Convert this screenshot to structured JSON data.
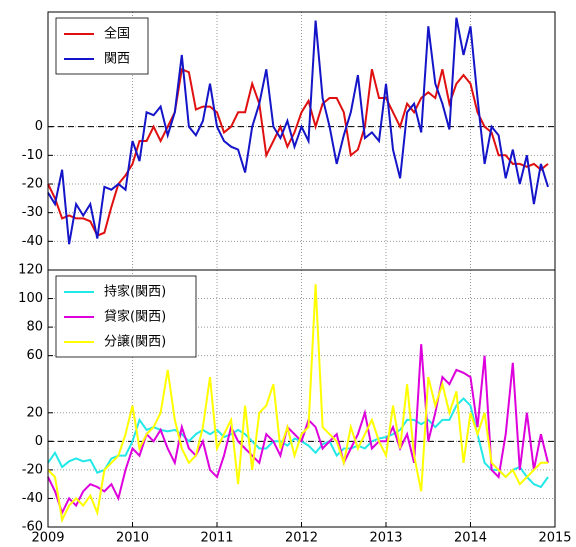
{
  "chart_data": [
    {
      "type": "line",
      "x": [
        2009,
        2009.083,
        2009.167,
        2009.25,
        2009.333,
        2009.417,
        2009.5,
        2009.583,
        2009.667,
        2009.75,
        2009.833,
        2009.917,
        2010,
        2010.083,
        2010.167,
        2010.25,
        2010.333,
        2010.417,
        2010.5,
        2010.583,
        2010.667,
        2010.75,
        2010.833,
        2010.917,
        2011,
        2011.083,
        2011.167,
        2011.25,
        2011.333,
        2011.417,
        2011.5,
        2011.583,
        2011.667,
        2011.75,
        2011.833,
        2011.917,
        2012,
        2012.083,
        2012.167,
        2012.25,
        2012.333,
        2012.417,
        2012.5,
        2012.583,
        2012.667,
        2012.75,
        2012.833,
        2012.917,
        2013,
        2013.083,
        2013.167,
        2013.25,
        2013.333,
        2013.417,
        2013.5,
        2013.583,
        2013.667,
        2013.75,
        2013.833,
        2013.917,
        2014,
        2014.083,
        2014.167,
        2014.25,
        2014.333,
        2014.417,
        2014.5,
        2014.583,
        2014.667,
        2014.75,
        2014.833,
        2014.917
      ],
      "xlim": [
        2009,
        2015
      ],
      "ylim": [
        -50,
        40
      ],
      "yticks": [
        -40,
        -30,
        -20,
        -10,
        0
      ],
      "grid": true,
      "legend": "upper left",
      "series": [
        {
          "name": "全国",
          "color": "#e01010",
          "values": [
            -20,
            -25,
            -32,
            -31,
            -32,
            -32,
            -33,
            -38,
            -37,
            -28,
            -20,
            -17,
            -13,
            -5,
            -5,
            0,
            -5,
            0,
            5,
            20,
            19,
            6,
            7,
            7,
            5,
            -2,
            0,
            5,
            5,
            15,
            8,
            -10,
            -5,
            0,
            -7,
            -2,
            5,
            9,
            0,
            8,
            10,
            10,
            5,
            -10,
            -8,
            0,
            20,
            10,
            10,
            5,
            0,
            8,
            5,
            10,
            12,
            10,
            20,
            8,
            15,
            18,
            15,
            5,
            0,
            -2,
            -10,
            -10,
            -13,
            -13,
            -14,
            -13,
            -15,
            -13
          ]
        },
        {
          "name": "関西",
          "color": "#1414c8",
          "values": [
            -23,
            -27,
            -15,
            -41,
            -27,
            -31,
            -27,
            -39,
            -21,
            -22,
            -20,
            -22,
            -5,
            -12,
            5,
            4,
            7,
            -3,
            5,
            25,
            0,
            -3,
            2,
            15,
            0,
            -5,
            -7,
            -8,
            -16,
            0,
            8,
            20,
            0,
            -4,
            2,
            -7,
            0,
            -5,
            37,
            10,
            0,
            -13,
            -3,
            5,
            18,
            -4,
            -2,
            -5,
            15,
            -8,
            -18,
            5,
            8,
            -2,
            35,
            15,
            8,
            -1,
            38,
            25,
            35,
            10,
            -13,
            0,
            -3,
            -18,
            -8,
            -20,
            -10,
            -27,
            -13,
            -21
          ]
        }
      ]
    },
    {
      "type": "line",
      "x": [
        2009,
        2009.083,
        2009.167,
        2009.25,
        2009.333,
        2009.417,
        2009.5,
        2009.583,
        2009.667,
        2009.75,
        2009.833,
        2009.917,
        2010,
        2010.083,
        2010.167,
        2010.25,
        2010.333,
        2010.417,
        2010.5,
        2010.583,
        2010.667,
        2010.75,
        2010.833,
        2010.917,
        2011,
        2011.083,
        2011.167,
        2011.25,
        2011.333,
        2011.417,
        2011.5,
        2011.583,
        2011.667,
        2011.75,
        2011.833,
        2011.917,
        2012,
        2012.083,
        2012.167,
        2012.25,
        2012.333,
        2012.417,
        2012.5,
        2012.583,
        2012.667,
        2012.75,
        2012.833,
        2012.917,
        2013,
        2013.083,
        2013.167,
        2013.25,
        2013.333,
        2013.417,
        2013.5,
        2013.583,
        2013.667,
        2013.75,
        2013.833,
        2013.917,
        2014,
        2014.083,
        2014.167,
        2014.25,
        2014.333,
        2014.417,
        2014.5,
        2014.583,
        2014.667,
        2014.75,
        2014.833,
        2014.917
      ],
      "xlim": [
        2009,
        2015
      ],
      "xticks": [
        2009,
        2010,
        2011,
        2012,
        2013,
        2014,
        2015
      ],
      "ylim": [
        -60,
        120
      ],
      "yticks": [
        -60,
        -40,
        -20,
        0,
        20,
        60,
        80,
        100,
        120
      ],
      "grid": true,
      "legend": "upper left",
      "series": [
        {
          "name": "持家(関西)",
          "color": "#22e8e8",
          "values": [
            -15,
            -8,
            -18,
            -14,
            -12,
            -14,
            -13,
            -22,
            -20,
            -12,
            -10,
            -10,
            0,
            15,
            8,
            10,
            8,
            7,
            8,
            5,
            0,
            5,
            8,
            5,
            8,
            3,
            5,
            8,
            5,
            0,
            -5,
            -5,
            0,
            0,
            -3,
            2,
            0,
            -3,
            -8,
            -2,
            0,
            -10,
            -5,
            -5,
            -3,
            -5,
            0,
            2,
            3,
            5,
            8,
            15,
            15,
            12,
            15,
            10,
            15,
            15,
            25,
            30,
            25,
            5,
            -15,
            -20,
            -20,
            -25,
            -20,
            -18,
            -25,
            -30,
            -32,
            -25
          ]
        },
        {
          "name": "貸家(関西)",
          "color": "#dd00dd",
          "values": [
            -25,
            -35,
            -50,
            -40,
            -45,
            -35,
            -30,
            -32,
            -35,
            -30,
            -40,
            -20,
            -5,
            -10,
            5,
            0,
            8,
            -5,
            -15,
            10,
            -5,
            -10,
            0,
            -20,
            -25,
            -10,
            10,
            0,
            -5,
            -10,
            -15,
            5,
            0,
            -10,
            10,
            5,
            0,
            15,
            10,
            -5,
            0,
            5,
            -15,
            -5,
            5,
            20,
            -5,
            0,
            0,
            10,
            -5,
            5,
            -15,
            68,
            0,
            20,
            45,
            40,
            50,
            48,
            45,
            10,
            60,
            -20,
            -25,
            5,
            55,
            -20,
            20,
            -20,
            5,
            -15
          ]
        },
        {
          "name": "分譲(関西)",
          "color": "#ffff00",
          "values": [
            -20,
            -25,
            -55,
            -45,
            -40,
            -45,
            -38,
            -50,
            -20,
            -15,
            -10,
            5,
            25,
            -5,
            5,
            10,
            20,
            50,
            15,
            -5,
            -15,
            -10,
            10,
            45,
            -5,
            5,
            15,
            -30,
            25,
            -20,
            20,
            25,
            40,
            -5,
            10,
            -10,
            5,
            10,
            110,
            10,
            5,
            0,
            -15,
            10,
            -5,
            5,
            15,
            0,
            -10,
            25,
            -5,
            40,
            -10,
            -35,
            45,
            25,
            40,
            20,
            35,
            -15,
            20,
            5,
            20,
            -15,
            -20,
            -25,
            -20,
            -30,
            -25,
            -20,
            -15,
            -15
          ]
        }
      ]
    }
  ]
}
